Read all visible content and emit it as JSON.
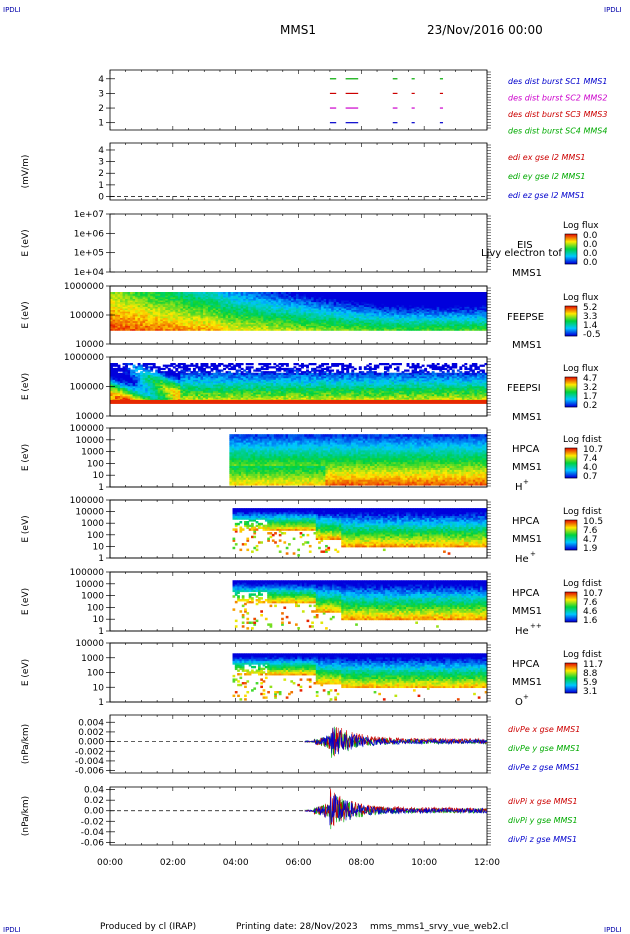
{
  "header": {
    "corner_left_top": "IPDLI",
    "corner_right_top": "IPDLI",
    "corner_left_bottom": "IPDLI",
    "corner_right_bottom": "IPDLI",
    "spacecraft": "MMS1",
    "datetime": "23/Nov/2016 00:00"
  },
  "footer": {
    "produced_by": "Produced by cl (IRAP)",
    "printing_date": "Printing date: 28/Nov/2023",
    "filename": "mms_mms1_srvy_vue_web2.cl"
  },
  "chart_data": {
    "type": "multi-panel time series / spectrogram",
    "x_ticks": [
      "00:00",
      "02:00",
      "04:00",
      "06:00",
      "08:00",
      "10:00",
      "12:00"
    ],
    "xlim_hours": [
      0,
      12
    ],
    "panels": [
      {
        "id": "burst",
        "type": "timeline",
        "ylabel": "",
        "yticks": [
          "1",
          "2",
          "3",
          "4"
        ],
        "ylim": [
          0.5,
          4.6
        ],
        "series": [
          {
            "name": "des dist burst SC1 MMS1",
            "color": "#0000cc",
            "y": 1,
            "intervals": [
              [
                7.0,
                7.2
              ],
              [
                7.5,
                7.9
              ],
              [
                9.0,
                9.15
              ],
              [
                9.6,
                9.7
              ],
              [
                10.5,
                10.6
              ]
            ]
          },
          {
            "name": "des dist burst SC2 MMS2",
            "color": "#cc00cc",
            "y": 2,
            "intervals": [
              [
                7.0,
                7.2
              ],
              [
                7.5,
                7.9
              ],
              [
                9.0,
                9.15
              ],
              [
                9.6,
                9.7
              ],
              [
                10.5,
                10.6
              ]
            ]
          },
          {
            "name": "des dist burst SC3 MMS3",
            "color": "#cc0000",
            "y": 3,
            "intervals": [
              [
                7.0,
                7.2
              ],
              [
                7.5,
                7.9
              ],
              [
                9.0,
                9.15
              ],
              [
                9.6,
                9.7
              ],
              [
                10.5,
                10.6
              ]
            ]
          },
          {
            "name": "des dist burst SC4 MMS4",
            "color": "#00aa00",
            "y": 4,
            "intervals": [
              [
                7.0,
                7.2
              ],
              [
                7.5,
                7.9
              ],
              [
                9.0,
                9.15
              ],
              [
                9.6,
                9.7
              ],
              [
                10.5,
                10.6
              ]
            ]
          }
        ]
      },
      {
        "id": "edi",
        "type": "line",
        "ylabel": "(mV/m)",
        "yticks": [
          "0",
          "1",
          "2",
          "3",
          "4"
        ],
        "ylim": [
          -0.3,
          4.6
        ],
        "legend": [
          {
            "name": "edi ex gse l2 MMS1",
            "color": "#cc0000"
          },
          {
            "name": "edi ey gse l2 MMS1",
            "color": "#00aa00"
          },
          {
            "name": "edi ez gse l2 MMS1",
            "color": "#0000cc"
          }
        ]
      },
      {
        "id": "eis",
        "type": "heatmap",
        "ylabel": "E (eV)",
        "yticks": [
          "1e+04",
          "1e+05",
          "1e+06",
          "1e+07"
        ],
        "log_y": true,
        "ylim": [
          10000,
          10000000
        ],
        "instrument": "EIS",
        "instrument2": "MMS1",
        "overlay": "Ljvy electron tof",
        "colorbar": {
          "title": "Log flux",
          "ticks": [
            "0.0",
            "0.0",
            "0.0",
            "0.0"
          ]
        },
        "data": "none"
      },
      {
        "id": "feepse",
        "type": "heatmap",
        "ylabel": "E (eV)",
        "yticks": [
          "10000",
          "100000",
          "1000000"
        ],
        "log_y": true,
        "ylim": [
          10000,
          1000000
        ],
        "instrument": "FEEPSE",
        "instrument2": "MMS1",
        "colorbar": {
          "title": "Log flux",
          "ticks": [
            "5.2",
            "3.3",
            "1.4",
            "-0.5"
          ]
        },
        "data_start_h": 0,
        "data_end_h": 12
      },
      {
        "id": "feepsi",
        "type": "heatmap",
        "ylabel": "E (eV)",
        "yticks": [
          "10000",
          "100000",
          "1000000"
        ],
        "log_y": true,
        "ylim": [
          10000,
          1000000
        ],
        "instrument": "FEEPSI",
        "instrument2": "MMS1",
        "colorbar": {
          "title": "Log flux",
          "ticks": [
            "4.7",
            "3.2",
            "1.7",
            "0.2"
          ]
        },
        "data_start_h": 0,
        "data_end_h": 12
      },
      {
        "id": "hpca_h",
        "type": "heatmap",
        "ylabel": "E (eV)",
        "yticks": [
          "1",
          "10",
          "100",
          "1000",
          "10000",
          "100000"
        ],
        "log_y": true,
        "ylim": [
          1,
          100000
        ],
        "instrument": "HPCA",
        "instrument2": "MMS1",
        "species": "H",
        "species_sup": "+",
        "colorbar": {
          "title": "Log fdist",
          "ticks": [
            "10.7",
            "7.4",
            "4.0",
            "0.7"
          ]
        },
        "data_start_h": 3.8,
        "data_end_h": 12
      },
      {
        "id": "hpca_he",
        "type": "heatmap",
        "ylabel": "E (eV)",
        "yticks": [
          "1",
          "10",
          "100",
          "1000",
          "10000",
          "100000"
        ],
        "log_y": true,
        "ylim": [
          1,
          100000
        ],
        "instrument": "HPCA",
        "instrument2": "MMS1",
        "species": "He",
        "species_sup": "+",
        "colorbar": {
          "title": "Log fdist",
          "ticks": [
            "10.5",
            "7.6",
            "4.7",
            "1.9"
          ]
        },
        "data_start_h": 3.9,
        "data_end_h": 12
      },
      {
        "id": "hpca_hepp",
        "type": "heatmap",
        "ylabel": "E (eV)",
        "yticks": [
          "1",
          "10",
          "100",
          "1000",
          "10000",
          "100000"
        ],
        "log_y": true,
        "ylim": [
          1,
          100000
        ],
        "instrument": "HPCA",
        "instrument2": "MMS1",
        "species": "He",
        "species_sup": "++",
        "colorbar": {
          "title": "Log fdist",
          "ticks": [
            "10.7",
            "7.6",
            "4.6",
            "1.6"
          ]
        },
        "data_start_h": 3.9,
        "data_end_h": 12
      },
      {
        "id": "hpca_o",
        "type": "heatmap",
        "ylabel": "E (eV)",
        "yticks": [
          "1",
          "10",
          "100",
          "1000",
          "10000"
        ],
        "log_y": true,
        "ylim": [
          1,
          10000
        ],
        "instrument": "HPCA",
        "instrument2": "MMS1",
        "species": "O",
        "species_sup": "+",
        "colorbar": {
          "title": "Log fdist",
          "ticks": [
            "11.7",
            "8.8",
            "5.9",
            "3.1"
          ]
        },
        "data_start_h": 3.9,
        "data_end_h": 12
      },
      {
        "id": "divpe",
        "type": "line",
        "ylabel": "(nPa/km)",
        "yticks": [
          "-0.006",
          "-0.004",
          "-0.002",
          "0.000",
          "0.002",
          "0.004"
        ],
        "ylim": [
          -0.0065,
          0.0055
        ],
        "legend": [
          {
            "name": "divPe x gse MMS1",
            "color": "#cc0000"
          },
          {
            "name": "divPe y gse MMS1",
            "color": "#00aa00"
          },
          {
            "name": "divPe z gse MMS1",
            "color": "#0000cc"
          }
        ],
        "data_start_h": 6.2,
        "data_end_h": 12,
        "peak_h": 7.05,
        "peak_amp": 0.004
      },
      {
        "id": "divpi",
        "type": "line",
        "ylabel": "(nPa/km)",
        "yticks": [
          "-0.06",
          "-0.04",
          "-0.02",
          "0.00",
          "0.02",
          "0.04"
        ],
        "ylim": [
          -0.065,
          0.045
        ],
        "legend": [
          {
            "name": "divPi x gse MMS1",
            "color": "#cc0000"
          },
          {
            "name": "divPi y gse MMS1",
            "color": "#00aa00"
          },
          {
            "name": "divPi z gse MMS1",
            "color": "#0000cc"
          }
        ],
        "data_start_h": 6.2,
        "data_end_h": 12,
        "peak_h": 7.0,
        "peak_amp": 0.04
      }
    ]
  }
}
